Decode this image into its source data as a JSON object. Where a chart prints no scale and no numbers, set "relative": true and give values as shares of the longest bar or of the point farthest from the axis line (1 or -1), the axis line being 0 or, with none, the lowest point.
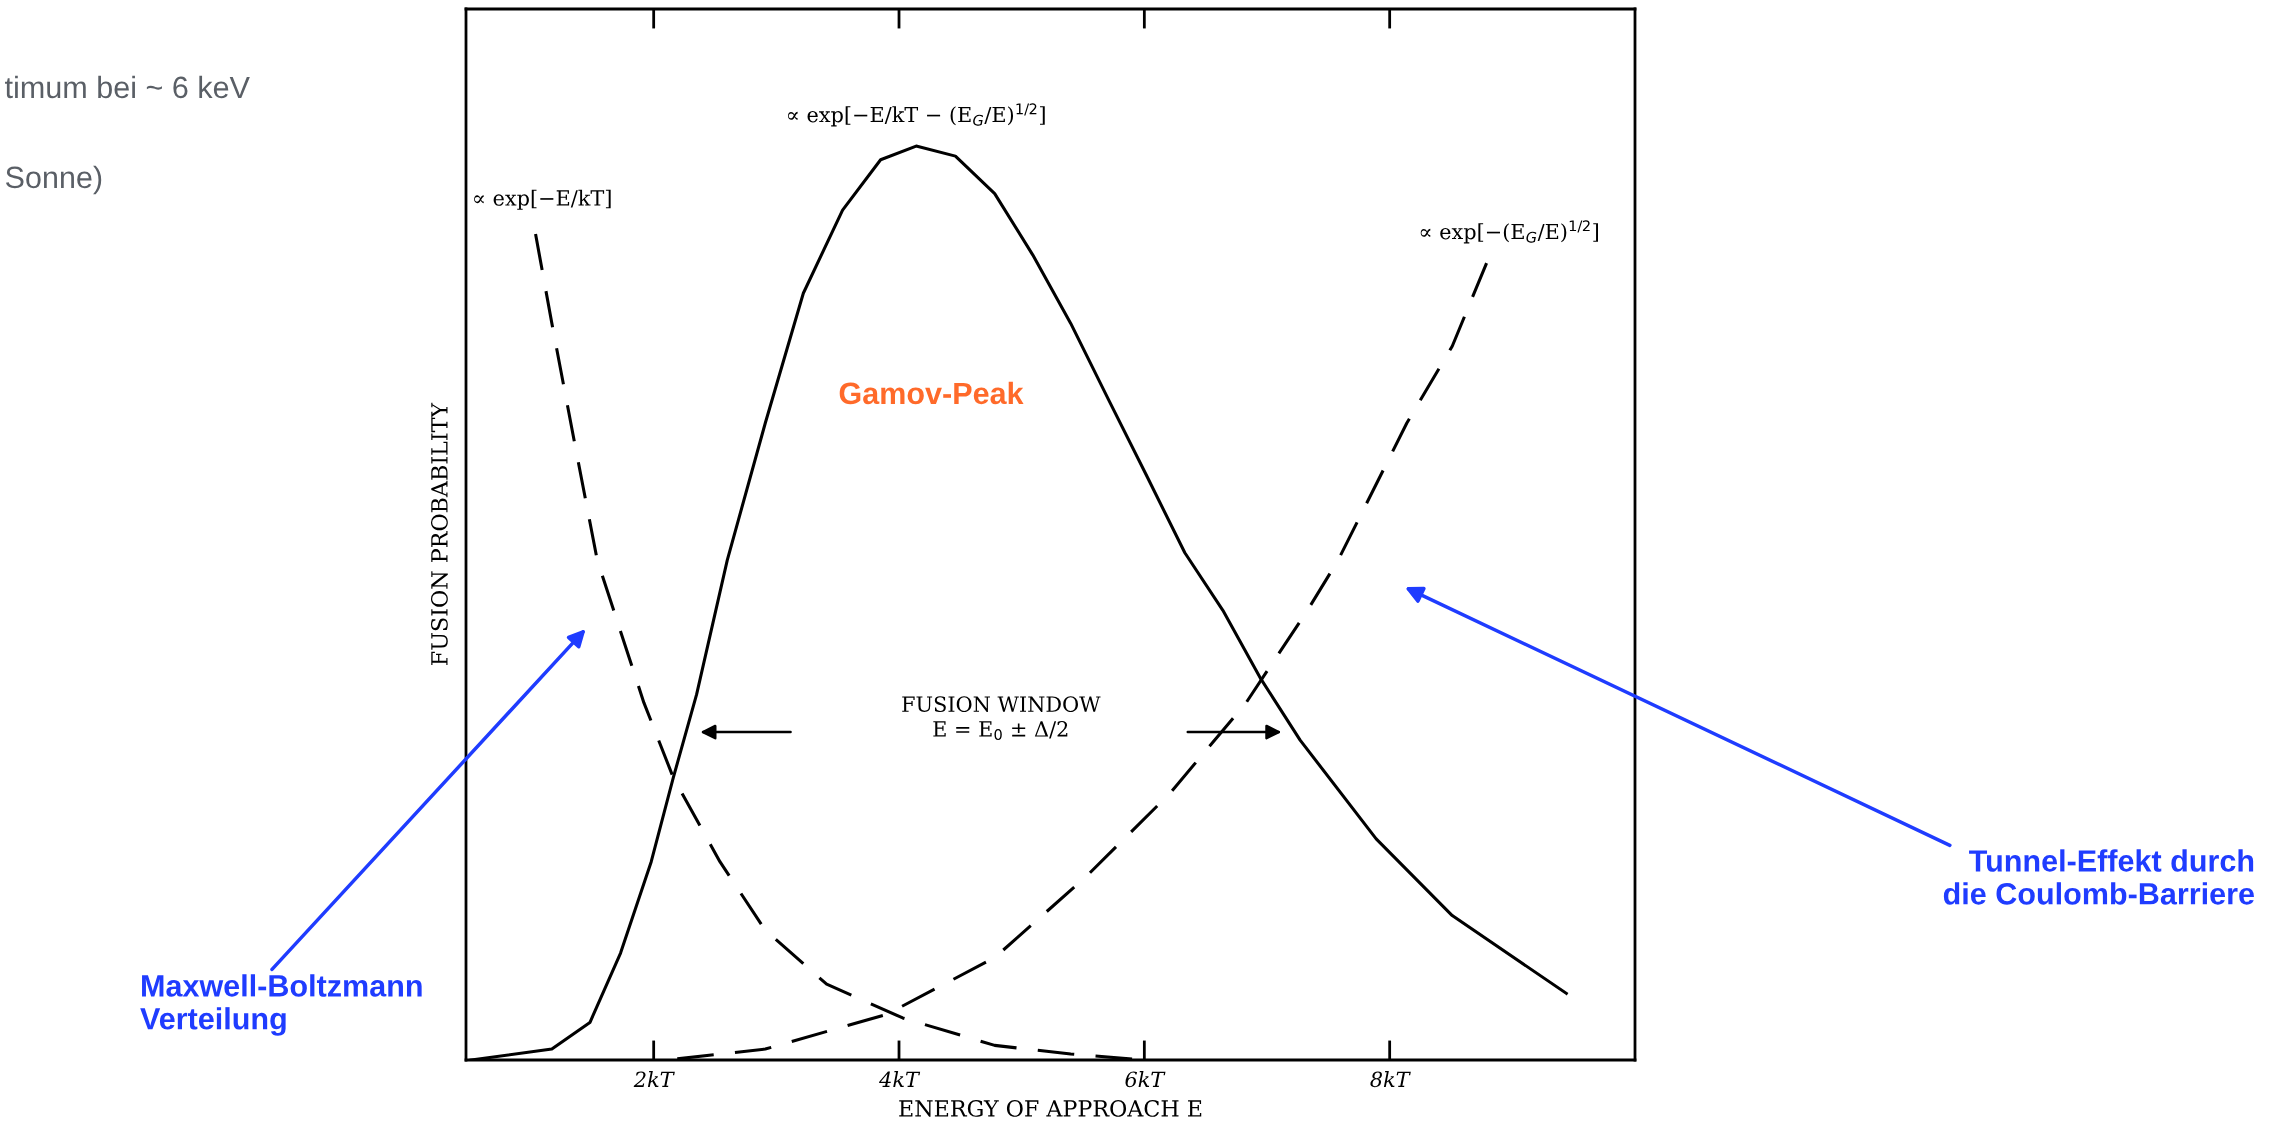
{
  "chart_data": {
    "type": "line",
    "relative": true,
    "xlabel": "ENERGY OF APPROACH E",
    "ylabel": "FUSION PROBABILITY",
    "xlim": [
      0.47,
      10
    ],
    "xticks": [
      {
        "value": 2,
        "label": "2kT"
      },
      {
        "value": 4,
        "label": "4kT"
      },
      {
        "value": 6,
        "label": "6kT"
      },
      {
        "value": 8,
        "label": "8kT"
      }
    ],
    "grid": false,
    "legend": false,
    "marker": "none",
    "series": [
      {
        "name": "∝ exp[−E/kT]",
        "color": "#000000",
        "line_style": "dashed",
        "x": [
          1.03,
          1.17,
          1.36,
          1.54,
          1.92,
          2.16,
          2.54,
          2.91,
          3.41,
          4.03,
          4.78,
          5.4,
          5.9
        ],
        "values": [
          0.909,
          0.806,
          0.672,
          0.547,
          0.391,
          0.309,
          0.217,
          0.142,
          0.083,
          0.046,
          0.016,
          0.0065,
          0.001
        ]
      },
      {
        "name": "∝ exp[−E/kT − (E$_{G}$/E)$^{1/2}$]",
        "color": "#000000",
        "line_style": "solid",
        "x": [
          0.51,
          1.17,
          1.48,
          1.73,
          1.98,
          2.16,
          2.35,
          2.6,
          2.91,
          3.22,
          3.54,
          3.85,
          4.14,
          4.46,
          4.78,
          5.09,
          5.4,
          5.71,
          6.02,
          6.33,
          6.64,
          6.95,
          7.27,
          7.89,
          8.51,
          9.44
        ],
        "values": [
          0,
          0.012,
          0.041,
          0.117,
          0.217,
          0.309,
          0.4,
          0.547,
          0.697,
          0.839,
          0.93,
          0.985,
          1.0,
          0.989,
          0.948,
          0.881,
          0.806,
          0.722,
          0.639,
          0.555,
          0.492,
          0.417,
          0.35,
          0.242,
          0.158,
          0.073
        ]
      },
      {
        "name": "∝ exp[−(E$_{G}$/E)$^{1/2}$]",
        "color": "#000000",
        "line_style": "dashed",
        "x": [
          2.11,
          2.91,
          3.9,
          4.78,
          5.52,
          6.21,
          6.83,
          7.33,
          7.58,
          8.14,
          8.51,
          8.79
        ],
        "values": [
          0,
          0.012,
          0.05,
          0.112,
          0.2,
          0.292,
          0.391,
          0.492,
          0.547,
          0.697,
          0.781,
          0.872
        ]
      }
    ],
    "annotations": [
      "Gamov-Peak",
      "FUSION WINDOW\nE = E$_{0}$ ± Δ/2",
      "Maxwell-Boltzmann\nVerteilung",
      "Tunnel-Effekt durch\ndie Coulomb-Barriere",
      "timum bei ~ 6 keV",
      "Sonne)"
    ]
  }
}
